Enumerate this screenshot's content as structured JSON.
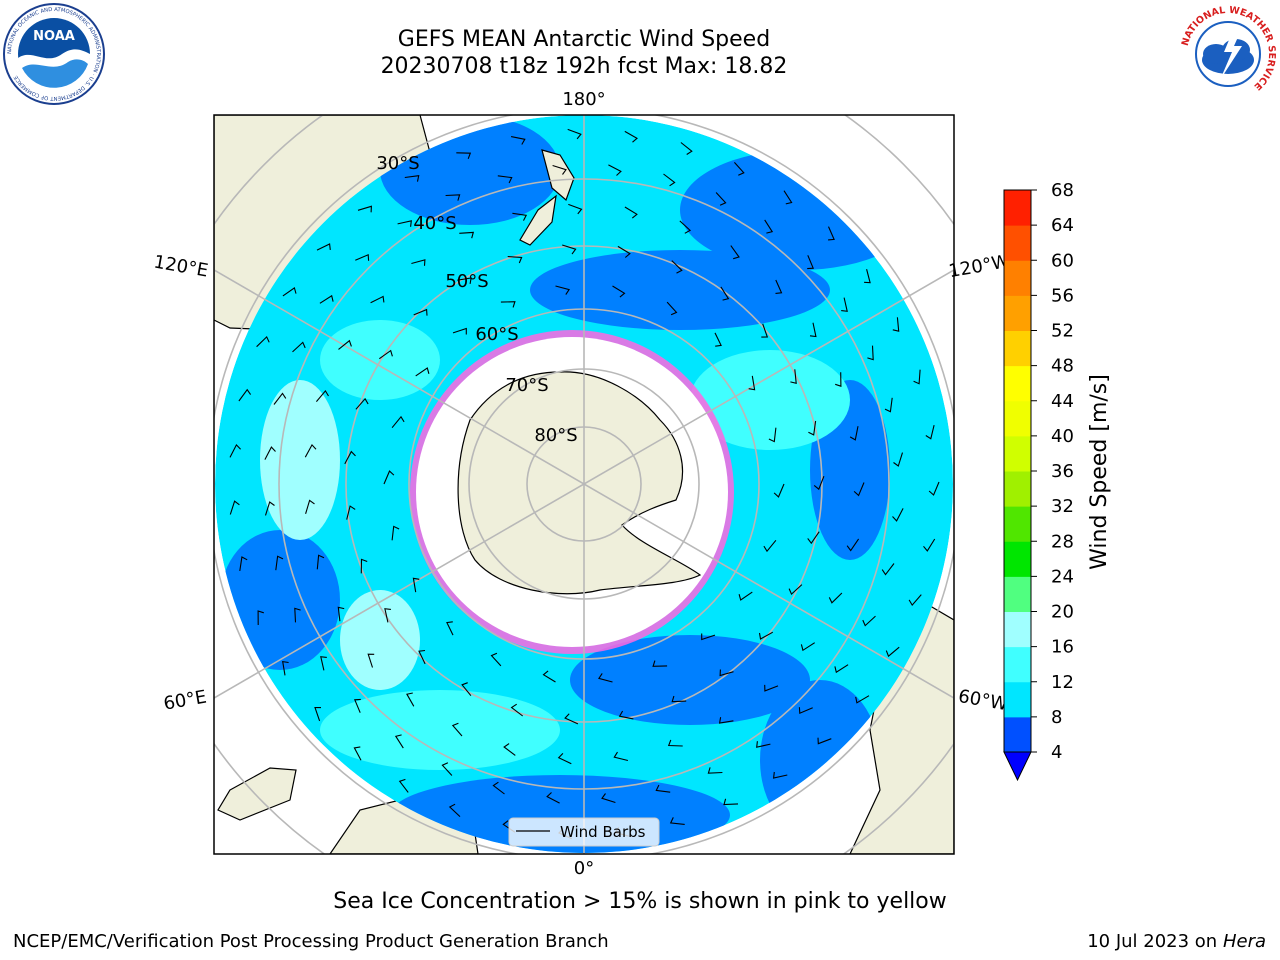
{
  "header": {
    "title": "GEFS MEAN Antarctic Wind Speed",
    "subtitle": "20230708 t18z 192h fcst   Max: 18.82"
  },
  "logos": {
    "noara_text": "NOAA",
    "noaa_ring": "NATIONAL OCEANIC AND ATMOSPHERIC ADMINISTRATION · U.S. DEPARTMENT OF COMMERCE",
    "nws_ring": "NATIONAL WEATHER SERVICE"
  },
  "map": {
    "longitude_labels": [
      "180°",
      "120°E",
      "120°W",
      "60°E",
      "60°W",
      "0°"
    ],
    "latitude_labels": [
      "30°S",
      "40°S",
      "50°S",
      "60°S",
      "70°S",
      "80°S"
    ],
    "legend_label": "Wind Barbs"
  },
  "colorbar": {
    "label": "Wind Speed [m/s]",
    "ticks": [
      "4",
      "8",
      "12",
      "16",
      "20",
      "24",
      "28",
      "32",
      "36",
      "40",
      "44",
      "48",
      "52",
      "56",
      "60",
      "64",
      "68"
    ],
    "colors": [
      "#0050ff",
      "#00e6ff",
      "#40ffff",
      "#a0ffff",
      "#50ff80",
      "#00e600",
      "#50e600",
      "#a0f000",
      "#d0ff00",
      "#f0ff00",
      "#ffff00",
      "#ffd000",
      "#ffa000",
      "#ff8000",
      "#ff5000",
      "#ff2000",
      "#ff0000"
    ],
    "extend_color": "#0000ff"
  },
  "footer": {
    "caption": "Sea Ice Concentration > 15% is shown in pink to yellow",
    "left": "NCEP/EMC/Verification Post Processing Product Generation Branch",
    "right_prefix": "10 Jul 2023 on ",
    "right_host": "Hera"
  }
}
